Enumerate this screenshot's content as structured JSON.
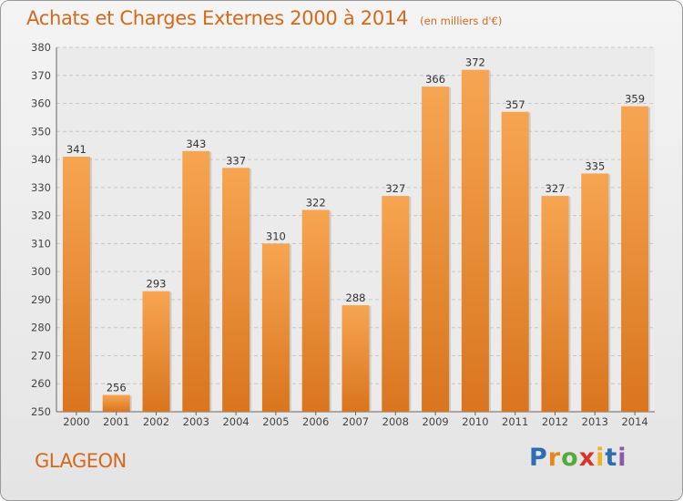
{
  "header": {
    "title": "Achats et Charges Externes 2000 à 2014",
    "subtitle": "(en milliers d'€)"
  },
  "footer": {
    "place": "GLAGEON",
    "brand": "Proxiti",
    "brand_letters": [
      {
        "ch": "P",
        "color": "#2e6db4"
      },
      {
        "ch": "r",
        "color": "#e6861f"
      },
      {
        "ch": "o",
        "color": "#56a93c"
      },
      {
        "ch": "x",
        "color": "#d8342c"
      },
      {
        "ch": "i",
        "color": "#f0b323"
      },
      {
        "ch": "t",
        "color": "#2e6db4"
      },
      {
        "ch": "i",
        "color": "#8a5aa8"
      }
    ]
  },
  "colors": {
    "bar_top": "#f7a552",
    "bar_bottom": "#d9751e",
    "accent_text": "#d4691c",
    "grid": "#c8c8c8"
  },
  "chart_data": {
    "type": "bar",
    "categories": [
      "2000",
      "2001",
      "2002",
      "2003",
      "2004",
      "2005",
      "2006",
      "2007",
      "2008",
      "2009",
      "2010",
      "2011",
      "2012",
      "2013",
      "2014"
    ],
    "values": [
      341,
      256,
      293,
      343,
      337,
      310,
      322,
      288,
      327,
      366,
      372,
      357,
      327,
      335,
      359
    ],
    "ylim": [
      250,
      380
    ],
    "yticks": [
      250,
      260,
      270,
      280,
      290,
      300,
      310,
      320,
      330,
      340,
      350,
      360,
      370,
      380
    ],
    "grid": true,
    "legend": "none"
  }
}
